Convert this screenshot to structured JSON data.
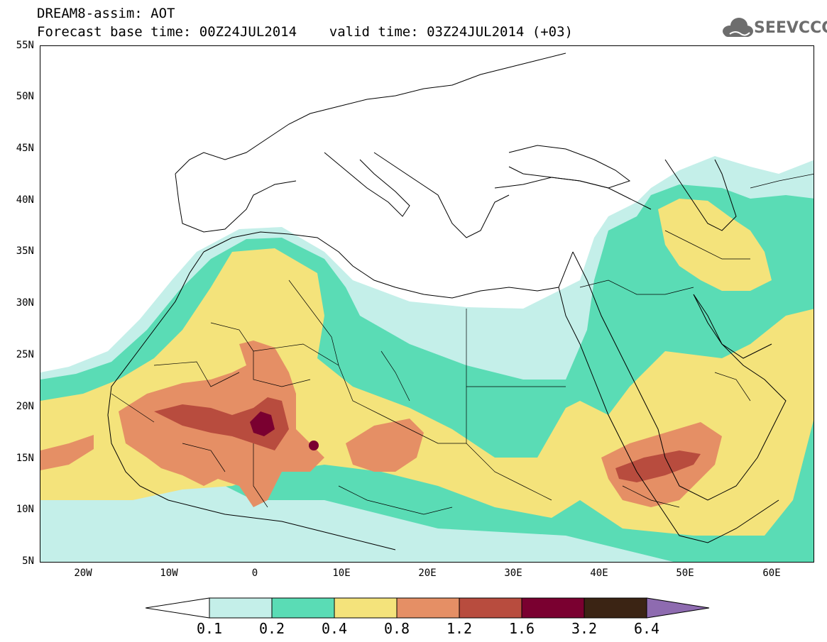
{
  "title": {
    "line1": "DREAM8-assim: AOT",
    "line2": "Forecast base time: 00Z24JUL2014    valid time: 03Z24JUL2014 (+03)"
  },
  "logo": {
    "text": "SEEVCCC",
    "icon": "cloud-icon"
  },
  "map": {
    "lon_range": [
      -25,
      65
    ],
    "lat_range": [
      5,
      55
    ],
    "lat_labels": [
      "55N",
      "50N",
      "45N",
      "40N",
      "35N",
      "30N",
      "25N",
      "20N",
      "15N",
      "10N",
      "5N"
    ],
    "lon_labels": [
      "20W",
      "10W",
      "0",
      "10E",
      "20E",
      "30E",
      "40E",
      "50E",
      "60E"
    ]
  },
  "colorbar": {
    "labels": [
      "0.1",
      "0.2",
      "0.4",
      "0.8",
      "1.2",
      "1.6",
      "3.2",
      "6.4"
    ],
    "colors": [
      "#ffffff",
      "#c4efe9",
      "#5adcb5",
      "#f4e37b",
      "#e58f65",
      "#b84c3e",
      "#7a0030",
      "#3b2414",
      "#8e6bb0"
    ]
  }
}
